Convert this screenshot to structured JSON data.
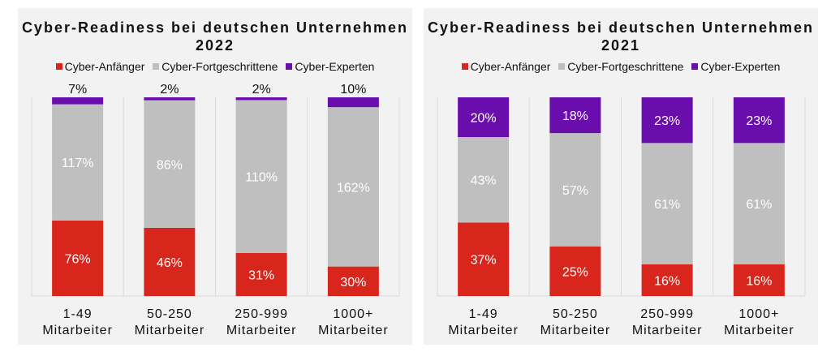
{
  "colors": {
    "anfaenger": "#d9261c",
    "fortgeschrittene": "#bfbfbf",
    "experten": "#6a0dad"
  },
  "chart_data": [
    {
      "type": "bar",
      "stacked": "percent",
      "title": "Cyber-Readiness bei deutschen Unternehmen 2022",
      "legend": [
        "Cyber-Anfänger",
        "Cyber-Fortgeschrittene",
        "Cyber-Experten"
      ],
      "categories": [
        "1-49 Mitarbeiter",
        "50-250 Mitarbeiter",
        "250-999 Mitarbeiter",
        "1000+ Mitarbeiter"
      ],
      "series": [
        {
          "name": "Cyber-Anfänger",
          "values": [
            76,
            46,
            31,
            30
          ],
          "labels": [
            "76%",
            "46%",
            "31%",
            "30%"
          ]
        },
        {
          "name": "Cyber-Fortgeschrittene",
          "values": [
            117,
            86,
            110,
            162
          ],
          "labels": [
            "117%",
            "86%",
            "110%",
            "162%"
          ]
        },
        {
          "name": "Cyber-Experten",
          "values": [
            7,
            2,
            2,
            10
          ],
          "labels": [
            "7%",
            "2%",
            "2%",
            "10%"
          ]
        }
      ]
    },
    {
      "type": "bar",
      "stacked": "percent",
      "title": "Cyber-Readiness bei deutschen Unternehmen 2021",
      "legend": [
        "Cyber-Anfänger",
        "Cyber-Fortgeschrittene",
        "Cyber-Experten"
      ],
      "categories": [
        "1-49 Mitarbeiter",
        "50-250 Mitarbeiter",
        "250-999 Mitarbeiter",
        "1000+ Mitarbeiter"
      ],
      "series": [
        {
          "name": "Cyber-Anfänger",
          "values": [
            37,
            25,
            16,
            16
          ],
          "labels": [
            "37%",
            "25%",
            "16%",
            "16%"
          ]
        },
        {
          "name": "Cyber-Fortgeschrittene",
          "values": [
            43,
            57,
            61,
            61
          ],
          "labels": [
            "43%",
            "57%",
            "61%",
            "61%"
          ]
        },
        {
          "name": "Cyber-Experten",
          "values": [
            20,
            18,
            23,
            23
          ],
          "labels": [
            "20%",
            "18%",
            "23%",
            "23%"
          ]
        }
      ]
    }
  ]
}
